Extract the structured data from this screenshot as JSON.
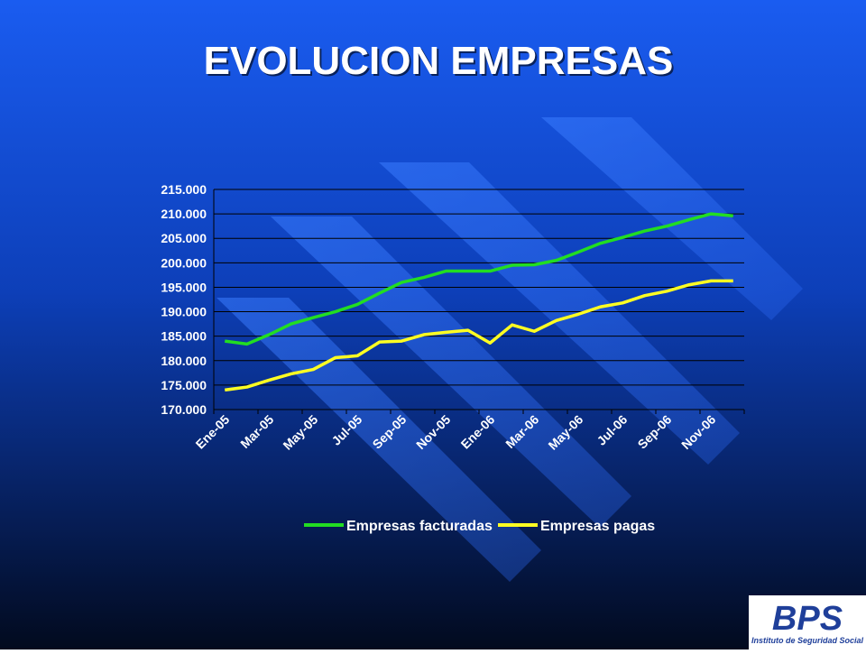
{
  "chart_data": {
    "type": "line",
    "title": "EVOLUCION EMPRESAS",
    "categories": [
      "Ene-05",
      null,
      "Mar-05",
      null,
      "May-05",
      null,
      "Jul-05",
      null,
      "Sep-05",
      null,
      "Nov-05",
      null,
      "Ene-06",
      null,
      "Mar-06",
      null,
      "May-06",
      null,
      "Jul-06",
      null,
      "Sep-06",
      null,
      "Nov-06",
      null
    ],
    "series": [
      {
        "name": "Empresas facturadas",
        "color": "#22dd22",
        "values": [
          184000,
          183400,
          185300,
          187500,
          188800,
          190000,
          191500,
          193800,
          196000,
          197000,
          198300,
          198300,
          198300,
          199500,
          199600,
          200500,
          202200,
          204000,
          205200,
          206500,
          207500,
          208800,
          210000,
          209600
        ]
      },
      {
        "name": "Empresas pagas",
        "color": "#ffff22",
        "values": [
          174000,
          174600,
          176000,
          177300,
          178200,
          180600,
          181000,
          183800,
          184000,
          185300,
          185800,
          186200,
          183600,
          187300,
          186000,
          188200,
          189500,
          191000,
          191800,
          193300,
          194200,
          195500,
          196300,
          196300
        ]
      }
    ],
    "ylim": [
      170000,
      215000
    ],
    "yticks": [
      {
        "value": 170000,
        "label": "170.000"
      },
      {
        "value": 175000,
        "label": "175.000"
      },
      {
        "value": 180000,
        "label": "180.000"
      },
      {
        "value": 185000,
        "label": "185.000"
      },
      {
        "value": 190000,
        "label": "190.000"
      },
      {
        "value": 195000,
        "label": "195.000"
      },
      {
        "value": 200000,
        "label": "200.000"
      },
      {
        "value": 205000,
        "label": "205.000"
      },
      {
        "value": 210000,
        "label": "210.000"
      },
      {
        "value": 215000,
        "label": "215.000"
      }
    ],
    "grid": true,
    "legend": "bottom"
  },
  "logo": {
    "name": "BPS",
    "subtitle": "Instituto de Seguridad Social"
  }
}
